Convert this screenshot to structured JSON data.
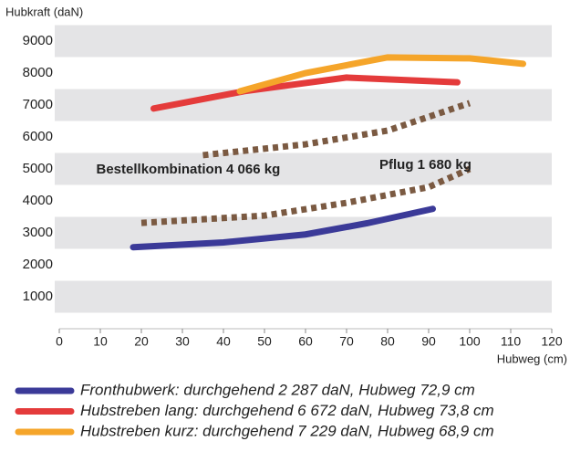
{
  "chart_data": {
    "type": "line",
    "y_label": "Hubkraft (daN)",
    "x_label": "Hubweg (cm)",
    "xlim": [
      0,
      120
    ],
    "xticks": [
      0,
      10,
      20,
      30,
      40,
      50,
      60,
      70,
      80,
      90,
      100,
      110,
      120
    ],
    "ylim": [
      0,
      9500
    ],
    "yticks": [
      1000,
      2000,
      3000,
      4000,
      5000,
      6000,
      7000,
      8000,
      9000
    ],
    "series": [
      {
        "name": "Fronthubwerk: durchgehend 2 287 daN, Hubweg 72,9 cm",
        "color": "#3b3a98",
        "x": [
          18,
          40,
          60,
          75,
          91
        ],
        "values": [
          2550,
          2700,
          2950,
          3300,
          3750
        ]
      },
      {
        "name": "Hubstreben lang: durchgehend 6 672 daN, Hubweg 73,8 cm",
        "color": "#e43b3b",
        "x": [
          23,
          45,
          70,
          97
        ],
        "values": [
          6890,
          7430,
          7860,
          7710
        ]
      },
      {
        "name": "Hubstreben kurz: durchgehend 7 229 daN, Hubweg 68,9 cm",
        "color": "#f5a52a",
        "x": [
          44,
          60,
          80,
          100,
          113
        ],
        "values": [
          7430,
          8000,
          8490,
          8460,
          8290
        ]
      }
    ],
    "dotted_lines": [
      {
        "color": "#7b5a42",
        "x": [
          35,
          60,
          80,
          100
        ],
        "values": [
          5430,
          5770,
          6200,
          7060
        ]
      },
      {
        "color": "#7b5a42",
        "x": [
          20,
          50,
          70,
          90,
          100
        ],
        "values": [
          3310,
          3540,
          3940,
          4430,
          5000
        ]
      }
    ],
    "annotations": [
      {
        "text": "Bestellkombination 4 066 kg",
        "x": 9,
        "y": 4970
      },
      {
        "text": "Pflug 1 680 kg",
        "x": 78,
        "y": 5120
      }
    ]
  }
}
